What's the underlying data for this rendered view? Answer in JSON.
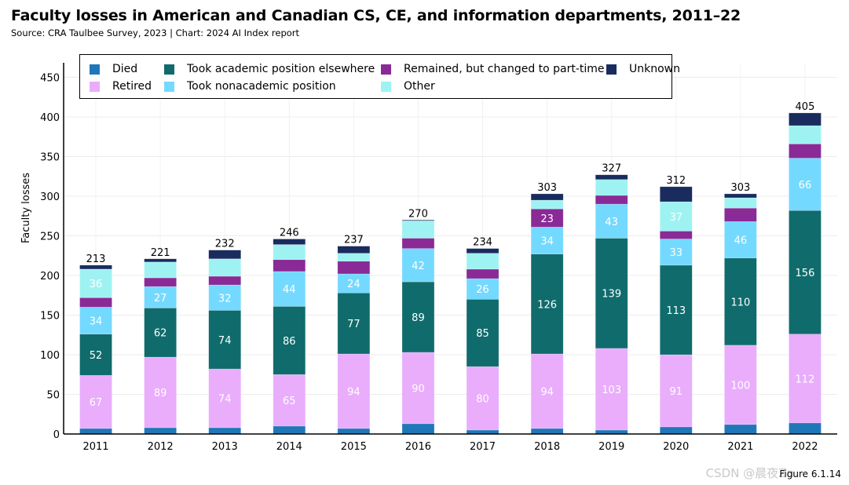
{
  "title": "Faculty losses in American and Canadian CS, CE, and information departments, 2011–22",
  "subtitle": "Source: CRA Taulbee Survey, 2023 | Chart: 2024 AI Index report",
  "figure_label": "Figure 6.1.14",
  "watermark": "CSDN @晨夜Zn",
  "chart_data": {
    "type": "bar",
    "stacked": true,
    "title": "Faculty losses in American and Canadian CS, CE, and information departments, 2011–22",
    "subtitle": "Source: CRA Taulbee Survey, 2023 | Chart: 2024 AI Index report",
    "xlabel": "",
    "ylabel": "Faculty losses",
    "ylim": [
      0,
      450
    ],
    "yticks": [
      0,
      50,
      100,
      150,
      200,
      250,
      300,
      350,
      400,
      450
    ],
    "grid": true,
    "legend_position": "top",
    "categories": [
      "2011",
      "2012",
      "2013",
      "2014",
      "2015",
      "2016",
      "2017",
      "2018",
      "2019",
      "2020",
      "2021",
      "2022"
    ],
    "totals": [
      213,
      221,
      232,
      246,
      237,
      270,
      234,
      303,
      327,
      312,
      303,
      405
    ],
    "series": [
      {
        "name": "Died",
        "color": "#1f77b9",
        "values": [
          7,
          8,
          8,
          10,
          7,
          13,
          5,
          7,
          5,
          9,
          12,
          14
        ],
        "labeled": false
      },
      {
        "name": "Retired",
        "color": "#e9adfc",
        "values": [
          67,
          89,
          74,
          65,
          94,
          90,
          80,
          94,
          103,
          91,
          100,
          112
        ],
        "labeled": true
      },
      {
        "name": "Took academic position elsewhere",
        "color": "#106b6c",
        "values": [
          52,
          62,
          74,
          86,
          77,
          89,
          85,
          126,
          139,
          113,
          110,
          156
        ],
        "labeled": true
      },
      {
        "name": "Took nonacademic position",
        "color": "#74d9ff",
        "values": [
          34,
          27,
          32,
          44,
          24,
          42,
          26,
          34,
          43,
          33,
          46,
          66
        ],
        "labeled": true
      },
      {
        "name": "Remained, but changed to part-time",
        "color": "#8a2a96",
        "values": [
          12,
          11,
          11,
          15,
          16,
          13,
          12,
          23,
          11,
          10,
          17,
          18
        ],
        "labeled_values": [
          null,
          null,
          null,
          null,
          null,
          null,
          null,
          23,
          null,
          null,
          null,
          null
        ]
      },
      {
        "name": "Other",
        "color": "#9ef3f2",
        "values": [
          36,
          20,
          22,
          19,
          10,
          22,
          20,
          11,
          20,
          37,
          13,
          23
        ],
        "labeled_values": [
          36,
          null,
          null,
          null,
          null,
          null,
          null,
          null,
          null,
          37,
          null,
          null
        ]
      },
      {
        "name": "Unknown",
        "color": "#1a2c5e",
        "values": [
          5,
          4,
          11,
          7,
          9,
          1,
          6,
          8,
          6,
          19,
          5,
          16
        ],
        "labeled": false
      }
    ],
    "legend": [
      {
        "label": "Died",
        "color": "#1f77b9"
      },
      {
        "label": "Retired",
        "color": "#e9adfc"
      },
      {
        "label": "Took academic position elsewhere",
        "color": "#106b6c"
      },
      {
        "label": "Took nonacademic position",
        "color": "#74d9ff"
      },
      {
        "label": "Remained, but changed to part-time",
        "color": "#8a2a96"
      },
      {
        "label": "Other",
        "color": "#9ef3f2"
      },
      {
        "label": "Unknown",
        "color": "#1a2c5e"
      }
    ]
  }
}
